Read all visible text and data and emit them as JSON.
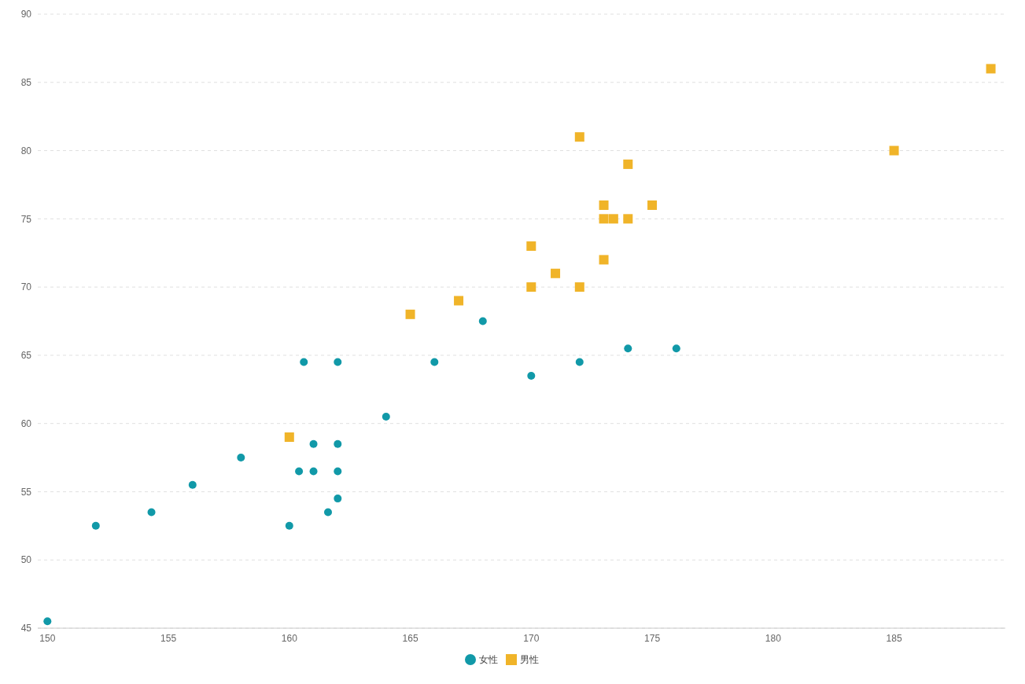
{
  "chart_data": {
    "type": "scatter",
    "xlim": [
      149.6,
      189.6
    ],
    "xticks": [
      150,
      155,
      160,
      165,
      170,
      175,
      180,
      185
    ],
    "ylim": [
      45,
      90
    ],
    "yticks": [
      45,
      50,
      55,
      60,
      65,
      70,
      75,
      80,
      85,
      90
    ],
    "grid": "y",
    "legend": "bottom",
    "series": [
      {
        "name": "女性",
        "color": "#1199a8",
        "marker": "circle",
        "x": [
          150,
          152,
          154.3,
          156,
          158,
          160,
          160.4,
          160.6,
          161,
          161,
          161.6,
          162,
          162,
          162,
          162,
          164,
          166,
          168,
          170,
          172,
          174,
          176
        ],
        "values": [
          45.5,
          52.5,
          53.5,
          55.5,
          57.5,
          52.5,
          56.5,
          64.5,
          58.5,
          56.5,
          53.5,
          64.5,
          58.5,
          56.5,
          54.5,
          60.5,
          64.5,
          67.5,
          63.5,
          64.5,
          65.5,
          65.5
        ]
      },
      {
        "name": "男性",
        "color": "#f0b429",
        "marker": "square",
        "x": [
          160,
          165,
          167,
          170,
          170,
          171,
          172,
          172,
          173,
          173,
          173.4,
          173,
          174,
          174,
          175,
          185,
          189
        ],
        "values": [
          59,
          68,
          69,
          73,
          70,
          71,
          81,
          70,
          76,
          75,
          75,
          72,
          79,
          75,
          76,
          80,
          86
        ]
      }
    ]
  }
}
